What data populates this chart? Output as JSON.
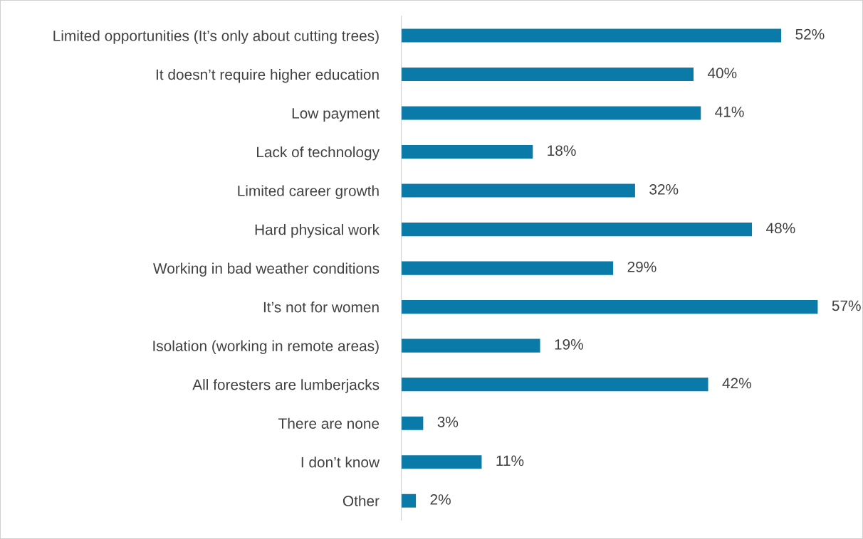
{
  "chart_data": {
    "type": "bar",
    "orientation": "horizontal",
    "categories": [
      "Limited opportunities (It’s only about cutting trees)",
      "It doesn’t require higher education",
      "Low payment",
      "Lack of technology",
      "Limited career growth",
      "Hard physical work",
      "Working in bad weather conditions",
      "It’s not for women",
      "Isolation (working in remote areas)",
      "All foresters are lumberjacks",
      "There are none",
      "I don’t know",
      "Other"
    ],
    "values": [
      52,
      40,
      41,
      18,
      32,
      48,
      29,
      57,
      19,
      42,
      3,
      11,
      2
    ],
    "value_labels": [
      "52%",
      "40%",
      "41%",
      "18%",
      "32%",
      "48%",
      "29%",
      "57%",
      "19%",
      "42%",
      "3%",
      "11%",
      "2%"
    ],
    "color": "#0a7aa8",
    "grid": false,
    "legend": false
  }
}
